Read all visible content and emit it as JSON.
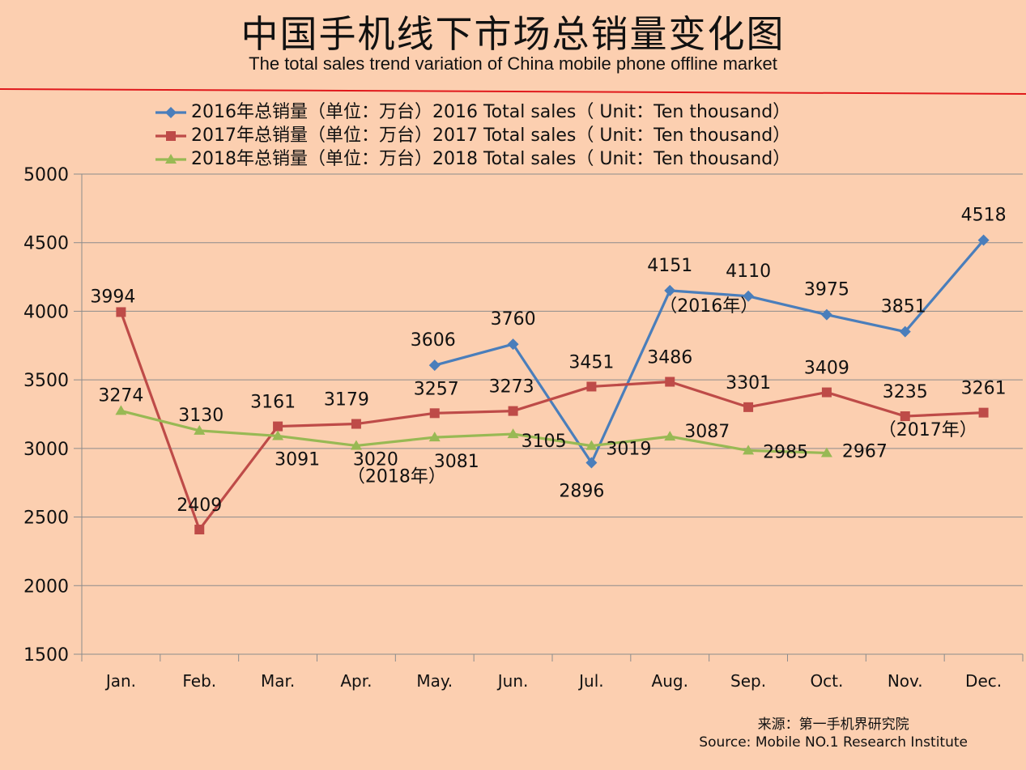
{
  "title_cn": "中国手机线下市场总销量变化图",
  "title_en": "The total sales trend variation of China mobile phone offline market",
  "source_cn": "来源：第一手机界研究院",
  "source_en": "Source: Mobile NO.1 Research Institute",
  "colors": {
    "divider": "#E0191C",
    "grid": "#8C8C8C"
  },
  "chart_data": {
    "type": "line",
    "title": "中国手机线下市场总销量变化图",
    "categories": [
      "Jan.",
      "Feb.",
      "Mar.",
      "Apr.",
      "May.",
      "Jun.",
      "Jul.",
      "Aug.",
      "Sep.",
      "Oct.",
      "Nov.",
      "Dec."
    ],
    "ylim": [
      1500,
      5000
    ],
    "yticks": [
      1500,
      2000,
      2500,
      3000,
      3500,
      4000,
      4500,
      5000
    ],
    "grid": true,
    "legend_position": "top-left",
    "series": [
      {
        "name": "2016年总销量（单位：万台）2016 Total sales（ Unit：Ten thousand）",
        "color": "#4A7EBB",
        "marker": "diamond",
        "values": [
          null,
          null,
          null,
          null,
          3606,
          3760,
          2896,
          4151,
          4110,
          3975,
          3851,
          4518
        ],
        "tag": "（2016年）"
      },
      {
        "name": "2017年总销量（单位：万台）2017 Total sales（ Unit：Ten thousand）",
        "color": "#BE4B48",
        "marker": "square",
        "values": [
          3994,
          2409,
          3161,
          3179,
          3257,
          3273,
          3451,
          3486,
          3301,
          3409,
          3235,
          3261
        ],
        "tag": "（2017年）"
      },
      {
        "name": "2018年总销量（单位：万台）2018 Total sales（ Unit：Ten thousand）",
        "color": "#98B954",
        "marker": "triangle",
        "values": [
          3274,
          3130,
          3091,
          3020,
          3081,
          3105,
          3019,
          3087,
          2985,
          2967,
          null,
          null
        ],
        "tag": "（2018年）"
      }
    ]
  }
}
